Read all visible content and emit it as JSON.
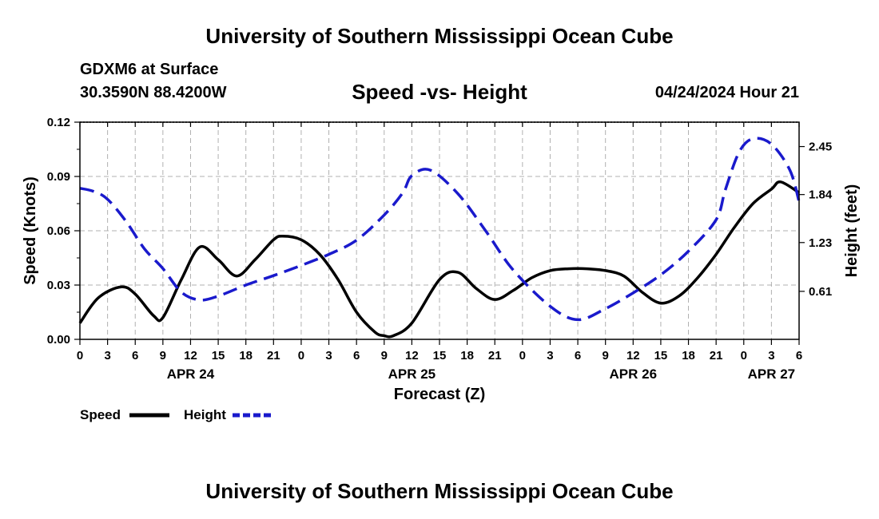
{
  "header": {
    "title": "University of Southern Mississippi Ocean Cube",
    "station": "GDXM6 at Surface",
    "coordinates": "30.3590N  88.4200W",
    "chart_title": "Speed -vs- Height",
    "datetime": "04/24/2024 Hour 21"
  },
  "footer": {
    "title": "University of Southern Mississippi Ocean Cube"
  },
  "legend": {
    "speed_label": "Speed",
    "height_label": "Height"
  },
  "colors": {
    "speed": "#000000",
    "height": "#1a1acc",
    "grid": "#b0b0b0"
  },
  "chart_data": {
    "type": "line",
    "title": "Speed -vs- Height",
    "xlabel": "Forecast (Z)",
    "ylabel": "Speed (Knots)",
    "y2label": "Height (feet)",
    "xlim": [
      0,
      78
    ],
    "ylim": [
      0,
      0.12
    ],
    "y2lim": [
      0,
      2.76
    ],
    "x_tick_labels": [
      "0",
      "3",
      "6",
      "9",
      "12",
      "15",
      "18",
      "21",
      "0",
      "3",
      "6",
      "9",
      "12",
      "15",
      "18",
      "21",
      "0",
      "3",
      "6",
      "9",
      "12",
      "15",
      "18",
      "21",
      "0",
      "3",
      "6"
    ],
    "day_labels": [
      {
        "label": "APR 24",
        "x": 12
      },
      {
        "label": "APR 25",
        "x": 36
      },
      {
        "label": "APR 26",
        "x": 60
      },
      {
        "label": "APR 27",
        "x": 75
      }
    ],
    "y_ticks": [
      0.0,
      0.03,
      0.06,
      0.09,
      0.12
    ],
    "y_tick_labels": [
      "0.00",
      "0.03",
      "0.06",
      "0.09",
      "0.12"
    ],
    "y2_ticks": [
      0.61,
      1.23,
      1.84,
      2.45
    ],
    "y2_tick_labels": [
      "0.61",
      "1.23",
      "1.84",
      "2.45"
    ],
    "series": [
      {
        "name": "Speed",
        "axis": "left",
        "style": "solid",
        "x": [
          0,
          2,
          4.5,
          6,
          8,
          9,
          11,
          13,
          15,
          17,
          19,
          21,
          22,
          24,
          26,
          28,
          30,
          32,
          33,
          34,
          36,
          39,
          41,
          43,
          45,
          47,
          49,
          51,
          53,
          55,
          57,
          59,
          61,
          63,
          65,
          67,
          69,
          71,
          73,
          75,
          76,
          78
        ],
        "values": [
          0.009,
          0.023,
          0.029,
          0.025,
          0.013,
          0.012,
          0.033,
          0.051,
          0.044,
          0.035,
          0.044,
          0.055,
          0.057,
          0.055,
          0.047,
          0.033,
          0.015,
          0.004,
          0.002,
          0.002,
          0.009,
          0.033,
          0.037,
          0.028,
          0.022,
          0.027,
          0.034,
          0.038,
          0.039,
          0.039,
          0.038,
          0.035,
          0.026,
          0.02,
          0.024,
          0.034,
          0.047,
          0.062,
          0.075,
          0.083,
          0.087,
          0.081
        ]
      },
      {
        "name": "Height",
        "axis": "right",
        "style": "dashed",
        "x": [
          0,
          1.5,
          3,
          5,
          7,
          9,
          11,
          13,
          15,
          18,
          21,
          24,
          27,
          30,
          33,
          35,
          36,
          38,
          41,
          44,
          47,
          51,
          54,
          57,
          60,
          63,
          66,
          69,
          70,
          71.5,
          73,
          75,
          77,
          78
        ],
        "values": [
          1.92,
          1.88,
          1.78,
          1.5,
          1.15,
          0.9,
          0.6,
          0.5,
          0.55,
          0.69,
          0.81,
          0.94,
          1.08,
          1.26,
          1.58,
          1.86,
          2.08,
          2.15,
          1.85,
          1.38,
          0.88,
          0.42,
          0.25,
          0.39,
          0.59,
          0.82,
          1.12,
          1.52,
          1.9,
          2.38,
          2.55,
          2.48,
          2.15,
          1.75
        ]
      }
    ]
  }
}
